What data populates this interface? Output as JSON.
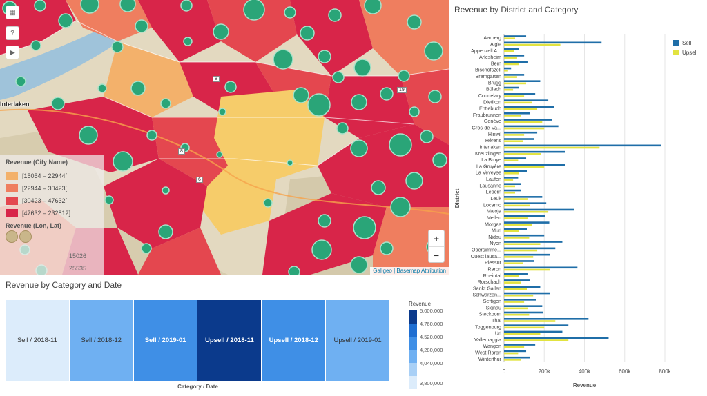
{
  "map": {
    "legend": {
      "title": "Revenue (City Name)",
      "bins": [
        {
          "label": "[15054 – 22944[",
          "color": "#f3b16b"
        },
        {
          "label": "[22944 – 30423[",
          "color": "#ef7e5f"
        },
        {
          "label": "[30423 – 47632[",
          "color": "#e4474f"
        },
        {
          "label": "[47632 – 232812]",
          "color": "#d82549"
        }
      ],
      "circle_title": "Revenue (Lon, Lat)",
      "circle_values": [
        "15026",
        "25535"
      ]
    },
    "city_label": "Interlaken",
    "road_labels": [
      "8",
      "19",
      "8",
      "6"
    ],
    "attribution": "Galigeo | Basemap Attribution",
    "zoom_in": "+",
    "zoom_out": "−",
    "controls": [
      "layers-icon",
      "help-icon",
      "play-icon"
    ],
    "colors": {
      "circle": "#2aa578",
      "circle_stroke": "#a7e3ca"
    }
  },
  "heatmap": {
    "title": "Revenue by Category and Date",
    "xlabel": "Category / Date",
    "cells": [
      {
        "label": "Sell / 2018-11",
        "value": 3800000
      },
      {
        "label": "Sell / 2018-12",
        "value": 4280000
      },
      {
        "label": "Sell / 2019-01",
        "value": 4520000
      },
      {
        "label": "Upsell / 2018-11",
        "value": 5000000
      },
      {
        "label": "Upsell / 2018-12",
        "value": 4520000
      },
      {
        "label": "Upsell / 2019-01",
        "value": 4280000
      }
    ],
    "legend": {
      "title": "Revenue",
      "ticks": [
        "5,000,000",
        "4,760,000",
        "4,520,000",
        "4,280,000",
        "4,040,000",
        "3,800,000"
      ],
      "colors": [
        "#0b3a8c",
        "#1f6ed1",
        "#3f8fe6",
        "#6fb0f2",
        "#a9d0f6",
        "#dcecfb"
      ]
    }
  },
  "chart_data": {
    "type": "bar",
    "title": "Revenue by District and Category",
    "xlabel": "Revenue",
    "ylabel": "District",
    "xlim": [
      0,
      800000
    ],
    "xticks": [
      "0",
      "200k",
      "400k",
      "600k",
      "800k"
    ],
    "legend_position": "top-right",
    "grid": true,
    "categories": [
      "Aarberg",
      "Aigle",
      "Appenzell A...",
      "Arlesheim",
      "Bern",
      "Bischofszell",
      "Bremgarten",
      "Brugg",
      "Bülach",
      "Courtelary",
      "Dietikon",
      "Entlebuch",
      "Fraubrunnen",
      "Genève",
      "Gros-de-Va...",
      "Hinwil",
      "Hérens",
      "Interlaken",
      "Kreuzlingen",
      "La Broye",
      "La Gruyère",
      "La Veveyse",
      "Laufen",
      "Lausanne",
      "Lebern",
      "Leuk",
      "Locarno",
      "Maloja",
      "Meilen",
      "Morges",
      "Muri",
      "Nidau",
      "Nyon",
      "Obersimme...",
      "Ouest lausa...",
      "Plessur",
      "Raron",
      "Rheintal",
      "Rorschach",
      "Sankt Gallen",
      "Schwarzen...",
      "Seftigen",
      "Signau",
      "Steckborn",
      "Thal",
      "Toggenburg",
      "Uri",
      "Vallemaggia",
      "Wangen",
      "West Raron",
      "Winterthur"
    ],
    "series": [
      {
        "name": "Sell",
        "color": "#1f6ea8",
        "values": [
          110000,
          485000,
          75000,
          100000,
          120000,
          35000,
          100000,
          180000,
          75000,
          155000,
          220000,
          250000,
          130000,
          240000,
          270000,
          165000,
          150000,
          780000,
          305000,
          110000,
          305000,
          115000,
          70000,
          85000,
          85000,
          190000,
          210000,
          350000,
          205000,
          225000,
          115000,
          200000,
          290000,
          255000,
          230000,
          150000,
          365000,
          120000,
          130000,
          180000,
          230000,
          160000,
          190000,
          195000,
          420000,
          320000,
          290000,
          520000,
          155000,
          110000,
          130000
        ]
      },
      {
        "name": "Upsell",
        "color": "#e2e340",
        "values": [
          55000,
          280000,
          50000,
          65000,
          75000,
          20000,
          65000,
          110000,
          45000,
          100000,
          140000,
          165000,
          85000,
          190000,
          200000,
          100000,
          95000,
          475000,
          185000,
          70000,
          200000,
          75000,
          45000,
          55000,
          55000,
          120000,
          130000,
          220000,
          120000,
          140000,
          75000,
          125000,
          180000,
          165000,
          145000,
          95000,
          230000,
          75000,
          85000,
          115000,
          145000,
          100000,
          120000,
          125000,
          255000,
          200000,
          180000,
          320000,
          100000,
          70000,
          85000
        ]
      }
    ]
  }
}
